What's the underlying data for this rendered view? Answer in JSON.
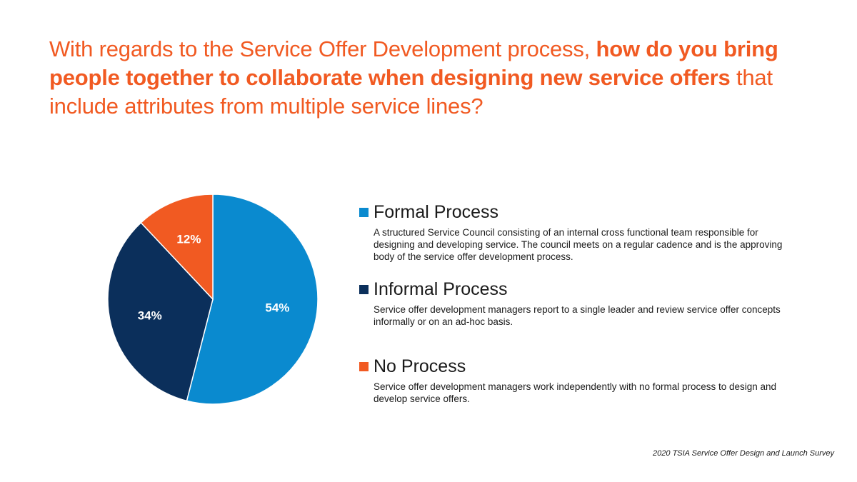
{
  "title": {
    "part1": "With regards to the Service Offer Development process, ",
    "part2": "how do you bring people together to collaborate when designing new service offers",
    "part3": " that include attributes from multiple service lines?"
  },
  "chart_data": {
    "type": "pie",
    "categories": [
      "Formal Process",
      "Informal Process",
      "No Process"
    ],
    "values": [
      54,
      34,
      12
    ],
    "labels": [
      "54%",
      "34%",
      "12%"
    ],
    "colors": [
      "#0A8ACF",
      "#0B2F5B",
      "#F15A22"
    ],
    "start": "12 o'clock",
    "direction": "clockwise",
    "legend_placement": "right"
  },
  "legend": {
    "items": [
      {
        "label": "Formal Process",
        "color": "#0A8ACF",
        "description": "A structured Service Council consisting of an internal cross functional team responsible for designing and developing service.  The council meets on a regular cadence and is the approving body of the service offer development process."
      },
      {
        "label": "Informal Process",
        "color": "#0B2F5B",
        "description": "Service offer development managers report to a single leader and review service offer concepts informally or on an ad-hoc basis."
      },
      {
        "label": "No Process",
        "color": "#F15A22",
        "description": "Service offer development managers work independently with no formal process to design and develop service offers."
      }
    ]
  },
  "source": "2020 TSIA Service Offer Design and Launch Survey"
}
